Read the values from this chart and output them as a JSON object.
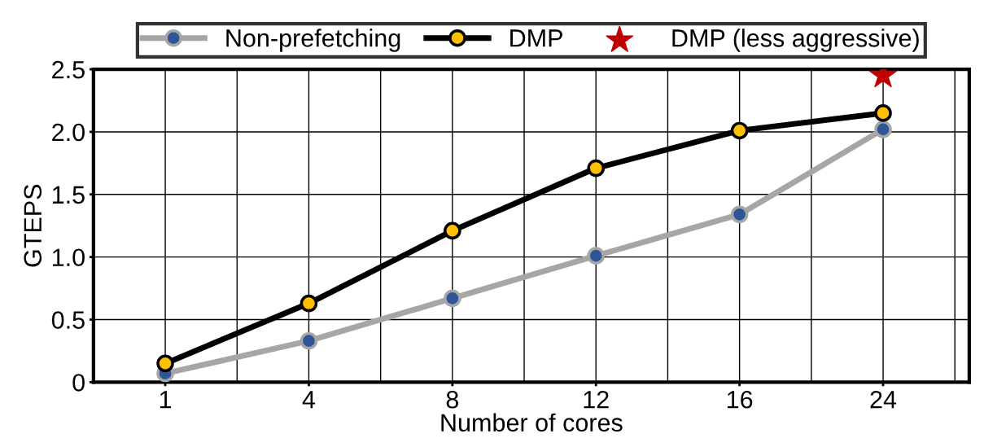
{
  "chart_data": {
    "type": "line",
    "xlabel": "Number of cores",
    "ylabel": "GTEPS",
    "categories": [
      "1",
      "4",
      "8",
      "12",
      "16",
      "24"
    ],
    "series": [
      {
        "name": "Non-prefetching",
        "color": "#a6a6a6",
        "colors": [
          "#2f5597",
          "#2f5597",
          "#2f5597",
          "#2f5597",
          "#2f5597",
          "#2f5597"
        ],
        "values": [
          0.07,
          0.33,
          0.67,
          1.01,
          1.34,
          2.02
        ]
      },
      {
        "name": "DMP",
        "color": "#000000",
        "colors": [
          "#ffc000",
          "#ffc000",
          "#ffc000",
          "#ffc000",
          "#ffc000",
          "#ffc000"
        ],
        "values": [
          0.15,
          0.63,
          1.21,
          1.71,
          2.01,
          2.15
        ]
      },
      {
        "name": "DMP (less aggressive)",
        "type": "scatter",
        "marker": "star",
        "color": "#c00000",
        "x": [
          "24"
        ],
        "values": [
          2.45
        ]
      }
    ],
    "ylim": [
      0,
      2.5
    ],
    "yticks": [
      0,
      0.5,
      {
        "value": 1.0,
        "label": "1.0"
      },
      1.5,
      {
        "value": 2.0,
        "label": "2.0"
      },
      2.5
    ],
    "grid": true,
    "legend": "top",
    "marker": "circle",
    "line_style": "solid"
  }
}
